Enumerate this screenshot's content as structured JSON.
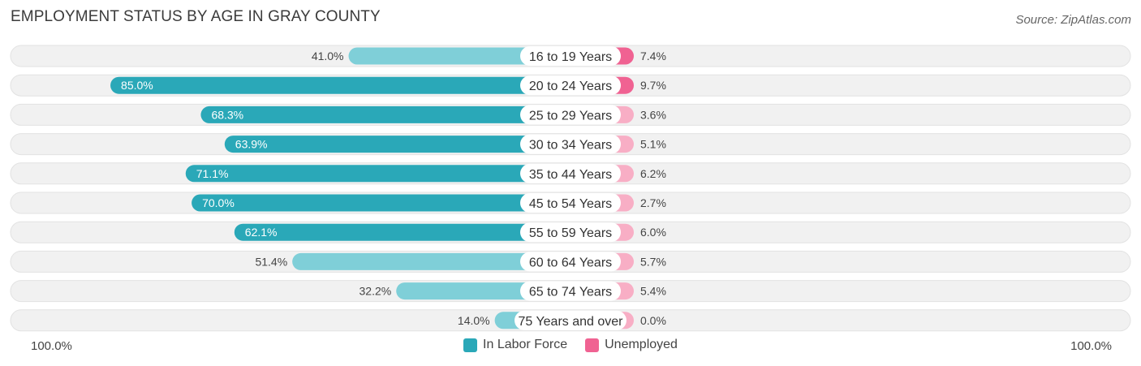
{
  "title": "EMPLOYMENT STATUS BY AGE IN GRAY COUNTY",
  "source": "Source: ZipAtlas.com",
  "scale_left": "100.0%",
  "scale_right": "100.0%",
  "colors": {
    "labor_dark": "#2aa8b8",
    "labor_light": "#7fcfd8",
    "unemp_dark": "#f06292",
    "unemp_light": "#f8aec5",
    "track": "#f1f1f1"
  },
  "legend": [
    {
      "label": "In Labor Force",
      "color": "#2aa8b8"
    },
    {
      "label": "Unemployed",
      "color": "#f06292"
    }
  ],
  "chart_data": {
    "type": "bar",
    "orientation": "horizontal-diverging",
    "categories": [
      "16 to 19 Years",
      "20 to 24 Years",
      "25 to 29 Years",
      "30 to 34 Years",
      "35 to 44 Years",
      "45 to 54 Years",
      "55 to 59 Years",
      "60 to 64 Years",
      "65 to 74 Years",
      "75 Years and over"
    ],
    "series": [
      {
        "name": "In Labor Force",
        "values": [
          41.0,
          85.0,
          68.3,
          63.9,
          71.1,
          70.0,
          62.1,
          51.4,
          32.2,
          14.0
        ]
      },
      {
        "name": "Unemployed",
        "values": [
          7.4,
          9.7,
          3.6,
          5.1,
          6.2,
          2.7,
          6.0,
          5.7,
          5.4,
          0.0
        ]
      }
    ],
    "labels_left": [
      "41.0%",
      "85.0%",
      "68.3%",
      "63.9%",
      "71.1%",
      "70.0%",
      "62.1%",
      "51.4%",
      "32.2%",
      "14.0%"
    ],
    "labels_right": [
      "7.4%",
      "9.7%",
      "3.6%",
      "5.1%",
      "6.2%",
      "2.7%",
      "6.0%",
      "5.7%",
      "5.4%",
      "0.0%"
    ],
    "xlim": [
      0,
      100
    ],
    "legend_position": "bottom-center"
  }
}
